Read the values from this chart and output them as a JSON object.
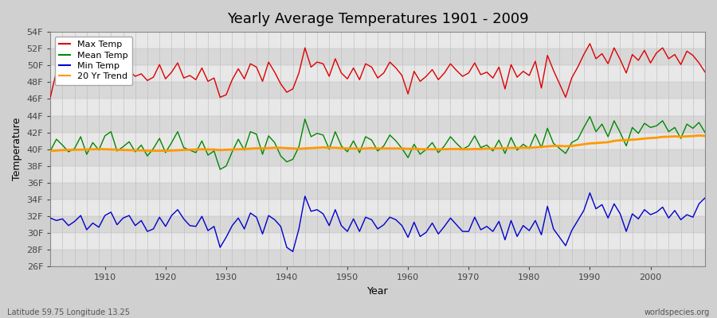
{
  "title": "Yearly Average Temperatures 1901 - 2009",
  "xlabel": "Year",
  "ylabel": "Temperature",
  "xlim": [
    1901,
    2009
  ],
  "ylim": [
    26,
    54
  ],
  "yticks": [
    26,
    28,
    30,
    32,
    34,
    36,
    38,
    40,
    42,
    44,
    46,
    48,
    50,
    52,
    54
  ],
  "ytick_labels": [
    "26F",
    "28F",
    "30F",
    "32F",
    "34F",
    "36F",
    "38F",
    "40F",
    "42F",
    "44F",
    "46F",
    "48F",
    "50F",
    "52F",
    "54F"
  ],
  "xticks": [
    1910,
    1920,
    1930,
    1940,
    1950,
    1960,
    1970,
    1980,
    1990,
    2000
  ],
  "years": [
    1901,
    1902,
    1903,
    1904,
    1905,
    1906,
    1907,
    1908,
    1909,
    1910,
    1911,
    1912,
    1913,
    1914,
    1915,
    1916,
    1917,
    1918,
    1919,
    1920,
    1921,
    1922,
    1923,
    1924,
    1925,
    1926,
    1927,
    1928,
    1929,
    1930,
    1931,
    1932,
    1933,
    1934,
    1935,
    1936,
    1937,
    1938,
    1939,
    1940,
    1941,
    1942,
    1943,
    1944,
    1945,
    1946,
    1947,
    1948,
    1949,
    1950,
    1951,
    1952,
    1953,
    1954,
    1955,
    1956,
    1957,
    1958,
    1959,
    1960,
    1961,
    1962,
    1963,
    1964,
    1965,
    1966,
    1967,
    1968,
    1969,
    1970,
    1971,
    1972,
    1973,
    1974,
    1975,
    1976,
    1977,
    1978,
    1979,
    1980,
    1981,
    1982,
    1983,
    1984,
    1985,
    1986,
    1987,
    1988,
    1989,
    1990,
    1991,
    1992,
    1993,
    1994,
    1995,
    1996,
    1997,
    1998,
    1999,
    2000,
    2001,
    2002,
    2003,
    2004,
    2005,
    2006,
    2007,
    2008,
    2009
  ],
  "max_temp": [
    46.2,
    49.3,
    48.8,
    48.1,
    48.6,
    49.7,
    48.4,
    49.1,
    48.5,
    50.8,
    51.2,
    48.3,
    48.9,
    49.4,
    48.7,
    49.0,
    48.2,
    48.6,
    50.1,
    48.4,
    49.2,
    50.3,
    48.5,
    48.8,
    48.3,
    49.7,
    48.1,
    48.5,
    46.2,
    46.5,
    48.3,
    49.6,
    48.4,
    50.2,
    49.8,
    48.1,
    50.4,
    49.2,
    47.8,
    46.8,
    47.2,
    49.1,
    52.1,
    49.8,
    50.4,
    50.2,
    48.7,
    50.8,
    49.1,
    48.4,
    49.7,
    48.3,
    50.2,
    49.8,
    48.5,
    49.1,
    50.4,
    49.7,
    48.8,
    46.6,
    49.3,
    48.1,
    48.7,
    49.5,
    48.3,
    49.1,
    50.2,
    49.4,
    48.7,
    49.1,
    50.3,
    48.9,
    49.2,
    48.5,
    49.8,
    47.2,
    50.1,
    48.6,
    49.3,
    48.8,
    50.5,
    47.3,
    51.2,
    49.4,
    47.8,
    46.2,
    48.5,
    49.8,
    51.3,
    52.6,
    50.8,
    51.4,
    50.2,
    52.1,
    50.7,
    49.1,
    51.3,
    50.6,
    51.8,
    50.3,
    51.5,
    52.1,
    50.8,
    51.3,
    50.1,
    51.7,
    51.2,
    50.3,
    49.2
  ],
  "mean_temp": [
    39.8,
    41.2,
    40.5,
    39.7,
    40.1,
    41.5,
    39.4,
    40.8,
    39.9,
    41.6,
    42.1,
    39.8,
    40.3,
    40.9,
    39.7,
    40.5,
    39.2,
    40.1,
    41.3,
    39.6,
    40.8,
    42.1,
    40.2,
    39.9,
    39.6,
    41.0,
    39.3,
    39.8,
    37.6,
    38.0,
    39.7,
    41.2,
    39.9,
    42.1,
    41.8,
    39.4,
    41.6,
    40.8,
    39.2,
    38.5,
    38.8,
    40.3,
    43.6,
    41.5,
    41.9,
    41.7,
    40.0,
    42.1,
    40.4,
    39.7,
    41.0,
    39.6,
    41.5,
    41.1,
    39.8,
    40.4,
    41.7,
    41.0,
    40.1,
    39.0,
    40.6,
    39.4,
    40.0,
    40.8,
    39.6,
    40.4,
    41.5,
    40.7,
    40.0,
    40.4,
    41.6,
    40.2,
    40.5,
    39.8,
    41.1,
    39.5,
    41.4,
    39.9,
    40.6,
    40.1,
    41.8,
    40.2,
    42.5,
    40.7,
    40.1,
    39.5,
    40.8,
    41.2,
    42.6,
    43.9,
    42.1,
    43.0,
    41.5,
    43.4,
    42.0,
    40.4,
    42.6,
    41.9,
    43.1,
    42.6,
    42.8,
    43.4,
    42.1,
    42.6,
    41.3,
    43.0,
    42.5,
    43.2,
    42.0
  ],
  "min_temp": [
    31.8,
    31.5,
    31.7,
    30.9,
    31.4,
    32.1,
    30.4,
    31.2,
    30.7,
    32.1,
    32.5,
    31.0,
    31.8,
    32.1,
    30.9,
    31.5,
    30.2,
    30.5,
    31.9,
    30.8,
    32.1,
    32.8,
    31.7,
    30.9,
    30.8,
    32.0,
    30.3,
    30.8,
    28.3,
    29.5,
    30.9,
    31.8,
    30.5,
    32.4,
    31.9,
    29.9,
    32.1,
    31.6,
    30.8,
    28.3,
    27.8,
    30.5,
    34.4,
    32.6,
    32.8,
    32.3,
    30.9,
    32.8,
    30.9,
    30.2,
    31.7,
    30.2,
    31.9,
    31.6,
    30.5,
    31.0,
    31.9,
    31.6,
    30.9,
    29.5,
    31.3,
    29.6,
    30.1,
    31.2,
    29.9,
    30.8,
    31.8,
    31.0,
    30.2,
    30.2,
    31.9,
    30.4,
    30.8,
    30.2,
    31.4,
    29.2,
    31.5,
    29.6,
    30.9,
    30.3,
    31.5,
    29.8,
    33.2,
    30.5,
    29.5,
    28.5,
    30.3,
    31.5,
    32.7,
    34.8,
    32.9,
    33.4,
    31.8,
    33.5,
    32.3,
    30.2,
    32.3,
    31.7,
    32.8,
    32.2,
    32.5,
    33.1,
    31.8,
    32.7,
    31.6,
    32.2,
    31.9,
    33.5,
    34.2
  ],
  "trend": [
    39.8,
    39.85,
    39.9,
    39.92,
    39.94,
    39.96,
    39.98,
    40.0,
    40.02,
    40.0,
    39.98,
    39.95,
    39.92,
    39.9,
    39.88,
    39.86,
    39.84,
    39.82,
    39.82,
    39.82,
    39.85,
    39.88,
    39.92,
    39.95,
    39.97,
    40.0,
    39.98,
    39.97,
    39.9,
    39.94,
    39.97,
    40.0,
    40.02,
    40.08,
    40.12,
    40.1,
    40.14,
    40.18,
    40.18,
    40.14,
    40.1,
    40.06,
    40.1,
    40.14,
    40.18,
    40.22,
    40.18,
    40.18,
    40.14,
    40.1,
    40.1,
    40.06,
    40.1,
    40.14,
    40.1,
    40.1,
    40.1,
    40.1,
    40.1,
    40.06,
    40.06,
    40.02,
    40.0,
    40.0,
    40.0,
    40.0,
    40.04,
    40.04,
    40.0,
    40.0,
    40.04,
    40.04,
    40.08,
    40.08,
    40.12,
    40.12,
    40.16,
    40.16,
    40.18,
    40.18,
    40.22,
    40.28,
    40.34,
    40.4,
    40.4,
    40.36,
    40.4,
    40.5,
    40.6,
    40.7,
    40.74,
    40.8,
    40.84,
    41.0,
    41.08,
    41.1,
    41.14,
    41.2,
    41.28,
    41.34,
    41.38,
    41.48,
    41.5,
    41.54,
    41.5,
    41.54,
    41.58,
    41.64,
    41.6
  ],
  "bg_dark_color": "#d8d8d8",
  "bg_light_color": "#e8e8e8",
  "figure_bg": "#d0d0d0",
  "vgrid_color": "#bbbbbb",
  "max_color": "#dd0000",
  "mean_color": "#008800",
  "min_color": "#0000cc",
  "trend_color": "#ff9900",
  "legend_bg": "#ffffff",
  "legend_edge": "#aaaaaa",
  "footer_left": "Latitude 59.75 Longitude 13.25",
  "footer_right": "worldspecies.org",
  "spine_color": "#888888",
  "tick_color": "#444444",
  "label_fontsize": 8,
  "title_fontsize": 13,
  "xlabel_fontsize": 9,
  "ylabel_fontsize": 9,
  "footer_fontsize": 7
}
